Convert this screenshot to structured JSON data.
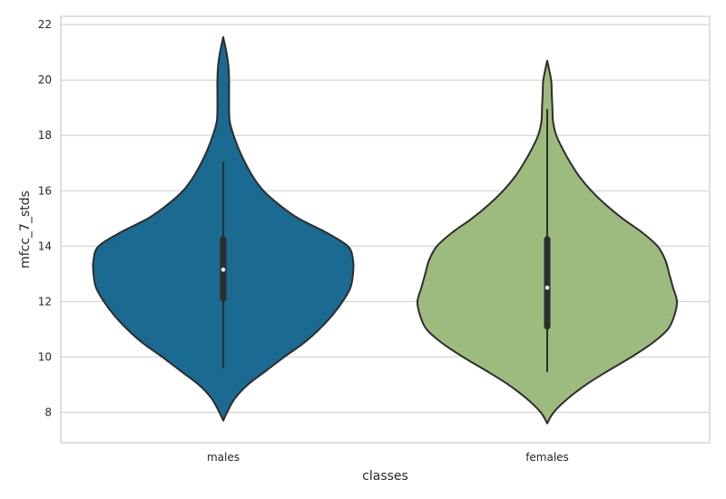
{
  "chart_data": {
    "type": "violin",
    "xlabel": "classes",
    "ylabel": "mfcc_7_stds",
    "ylim": [
      6.9,
      22.3
    ],
    "yticks": [
      8,
      10,
      12,
      14,
      16,
      18,
      20,
      22
    ],
    "grid": true,
    "categories": [
      "males",
      "females"
    ],
    "colors": [
      "#1a6a91",
      "#9ebb7f"
    ],
    "edge_color": "#2d2d2d",
    "violins": [
      {
        "name": "males",
        "median": 13.15,
        "q1": 12.1,
        "q3": 14.25,
        "whisker_low": 9.6,
        "whisker_high": 17.05,
        "min": 7.7,
        "max": 21.55,
        "density": [
          [
            7.7,
            0.0
          ],
          [
            8.0,
            0.03
          ],
          [
            8.5,
            0.09
          ],
          [
            9.0,
            0.19
          ],
          [
            9.5,
            0.33
          ],
          [
            10.0,
            0.47
          ],
          [
            10.5,
            0.62
          ],
          [
            11.0,
            0.74
          ],
          [
            11.5,
            0.84
          ],
          [
            12.0,
            0.92
          ],
          [
            12.5,
            0.98
          ],
          [
            13.0,
            1.0
          ],
          [
            13.5,
            1.0
          ],
          [
            14.0,
            0.96
          ],
          [
            14.5,
            0.79
          ],
          [
            15.0,
            0.58
          ],
          [
            15.5,
            0.43
          ],
          [
            16.0,
            0.31
          ],
          [
            16.5,
            0.23
          ],
          [
            17.0,
            0.17
          ],
          [
            17.5,
            0.12
          ],
          [
            18.0,
            0.08
          ],
          [
            18.5,
            0.05
          ],
          [
            19.0,
            0.045
          ],
          [
            19.5,
            0.045
          ],
          [
            20.0,
            0.045
          ],
          [
            20.5,
            0.04
          ],
          [
            21.0,
            0.025
          ],
          [
            21.55,
            0.0
          ]
        ]
      },
      {
        "name": "females",
        "median": 12.5,
        "q1": 11.1,
        "q3": 14.25,
        "whisker_low": 9.45,
        "whisker_high": 18.95,
        "min": 7.6,
        "max": 20.7,
        "density": [
          [
            7.6,
            0.0
          ],
          [
            8.0,
            0.05
          ],
          [
            8.5,
            0.16
          ],
          [
            9.0,
            0.3
          ],
          [
            9.5,
            0.47
          ],
          [
            10.0,
            0.65
          ],
          [
            10.5,
            0.81
          ],
          [
            11.0,
            0.93
          ],
          [
            11.5,
            0.98
          ],
          [
            12.0,
            1.0
          ],
          [
            12.5,
            0.97
          ],
          [
            13.0,
            0.94
          ],
          [
            13.5,
            0.91
          ],
          [
            14.0,
            0.85
          ],
          [
            14.5,
            0.73
          ],
          [
            15.0,
            0.58
          ],
          [
            15.5,
            0.45
          ],
          [
            16.0,
            0.34
          ],
          [
            16.5,
            0.25
          ],
          [
            17.0,
            0.18
          ],
          [
            17.5,
            0.12
          ],
          [
            18.0,
            0.07
          ],
          [
            18.5,
            0.045
          ],
          [
            19.0,
            0.04
          ],
          [
            19.5,
            0.035
          ],
          [
            20.0,
            0.03
          ],
          [
            20.7,
            0.0
          ]
        ]
      }
    ]
  }
}
